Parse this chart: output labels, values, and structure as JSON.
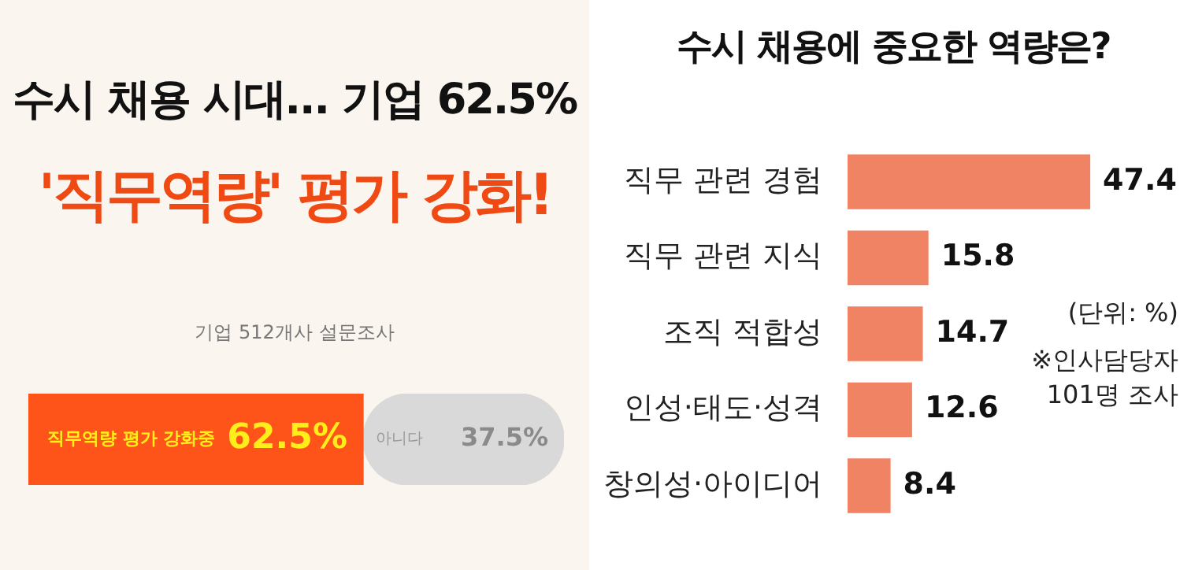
{
  "chart_data": [
    {
      "type": "bar",
      "title": "수시 채용 시대... 기업 62.5%",
      "subtitle": "'직무역량' 평가 강화!",
      "annotations": [
        "기업 512개사 설문조사"
      ],
      "orientation": "horizontal",
      "stacked": true,
      "categories": [
        null
      ],
      "xlim": [
        0,
        100
      ],
      "tick_labels": false,
      "legend": false,
      "series": [
        {
          "name": "직무역량 평가 강화중",
          "color": "#ff5419",
          "values": [
            62.5
          ],
          "value_labels": [
            "62.5%"
          ]
        },
        {
          "name": "아니다",
          "color": "#d9d9d9",
          "values": [
            37.5
          ],
          "value_labels": [
            "37.5%"
          ]
        }
      ]
    },
    {
      "type": "bar",
      "title": "수시 채용에 중요한 역량은?",
      "annotations": [
        "(단위: %)",
        "※인사담당자 101명 조사"
      ],
      "orientation": "horizontal",
      "categories": [
        "직무 관련 경험",
        "직무 관련 지식",
        "조직 적합성",
        "인성·태도·성격",
        "창의성·아이디어"
      ],
      "values": [
        47.4,
        15.8,
        14.7,
        12.6,
        8.4
      ],
      "color": "#f08363",
      "data_labels": true,
      "xlim": [
        0,
        48
      ],
      "tick_labels": "y",
      "legend": false
    }
  ]
}
